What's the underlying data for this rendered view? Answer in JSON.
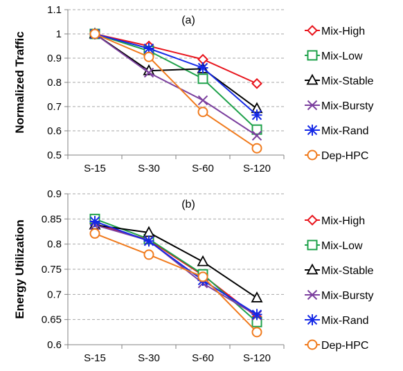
{
  "chart_data": [
    {
      "type": "line",
      "panel_label": "(a)",
      "title": "",
      "xlabel": "",
      "ylabel": "Normalized Traffic",
      "categories": [
        "S-15",
        "S-30",
        "S-60",
        "S-120"
      ],
      "ylim": [
        0.5,
        1.1
      ],
      "yticks": [
        "0.5",
        "0.6",
        "0.7",
        "0.8",
        "0.9",
        "1",
        "1.1"
      ],
      "grid": "horizontal-dashed",
      "legend_position": "right",
      "series": [
        {
          "name": "Mix-High",
          "marker": "diamond",
          "color": "#e8141c",
          "values": [
            1.0,
            0.95,
            0.895,
            0.795
          ]
        },
        {
          "name": "Mix-Low",
          "marker": "square",
          "color": "#1ea14a",
          "values": [
            1.0,
            0.93,
            0.815,
            0.605
          ]
        },
        {
          "name": "Mix-Stable",
          "marker": "triangle",
          "color": "#000000",
          "values": [
            1.0,
            0.848,
            0.856,
            0.692
          ]
        },
        {
          "name": "Mix-Bursty",
          "marker": "x",
          "color": "#7b3f9e",
          "values": [
            1.0,
            0.84,
            0.726,
            0.58
          ]
        },
        {
          "name": "Mix-Rand",
          "marker": "star",
          "color": "#1428e6",
          "values": [
            1.0,
            0.94,
            0.86,
            0.665
          ]
        },
        {
          "name": "Dep-HPC",
          "marker": "circle",
          "color": "#f07a1c",
          "values": [
            1.0,
            0.905,
            0.678,
            0.528
          ]
        }
      ]
    },
    {
      "type": "line",
      "panel_label": "(b)",
      "title": "",
      "xlabel": "",
      "ylabel": "Energy Utilization",
      "categories": [
        "S-15",
        "S-30",
        "S-60",
        "S-120"
      ],
      "ylim": [
        0.6,
        0.9
      ],
      "yticks": [
        "0.6",
        "0.65",
        "0.7",
        "0.75",
        "0.8",
        "0.85",
        "0.9"
      ],
      "grid": "horizontal-dashed",
      "legend_position": "right",
      "series": [
        {
          "name": "Mix-High",
          "marker": "diamond",
          "color": "#e8141c",
          "values": [
            0.84,
            0.808,
            0.738,
            0.655
          ]
        },
        {
          "name": "Mix-Low",
          "marker": "square",
          "color": "#1ea14a",
          "values": [
            0.85,
            0.81,
            0.74,
            0.645
          ]
        },
        {
          "name": "Mix-Stable",
          "marker": "triangle",
          "color": "#000000",
          "values": [
            0.838,
            0.823,
            0.765,
            0.693
          ]
        },
        {
          "name": "Mix-Bursty",
          "marker": "x",
          "color": "#7b3f9e",
          "values": [
            0.838,
            0.807,
            0.722,
            0.658
          ]
        },
        {
          "name": "Mix-Rand",
          "marker": "star",
          "color": "#1428e6",
          "values": [
            0.845,
            0.806,
            0.728,
            0.66
          ]
        },
        {
          "name": "Dep-HPC",
          "marker": "circle",
          "color": "#f07a1c",
          "values": [
            0.821,
            0.779,
            0.735,
            0.625
          ]
        }
      ]
    }
  ]
}
